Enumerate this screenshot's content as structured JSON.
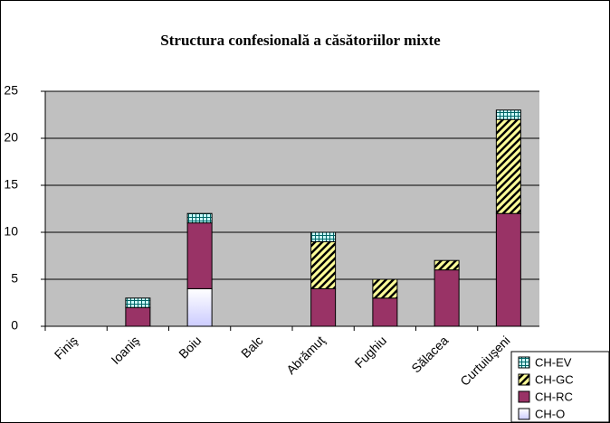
{
  "chart_data": {
    "type": "stacked_bar",
    "title": "Structura confesională a căsătoriilor mixte",
    "categories": [
      "Finiş",
      "Ioaniş",
      "Boiu",
      "Balc",
      "Abrămuţ",
      "Fughiu",
      "Sălacea",
      "Curtuiuşeni"
    ],
    "series": [
      {
        "name": "CH-O",
        "color": "#ccccff",
        "values": [
          0,
          0,
          4,
          0,
          0,
          0,
          0,
          0
        ]
      },
      {
        "name": "CH-RC",
        "color": "#993366",
        "values": [
          0,
          2,
          7,
          0,
          4,
          3,
          6,
          12
        ]
      },
      {
        "name": "CH-GC",
        "color": "#ffff99",
        "values": [
          0,
          0,
          0,
          0,
          5,
          2,
          1,
          10
        ]
      },
      {
        "name": "CH-EV",
        "color": "#ccffff",
        "values": [
          0,
          1,
          1,
          0,
          1,
          0,
          0,
          1
        ]
      }
    ],
    "ylim": [
      0,
      25
    ],
    "yticks": [
      0,
      5,
      10,
      15,
      20,
      25
    ],
    "grid": true,
    "legend": "bottom-right"
  }
}
